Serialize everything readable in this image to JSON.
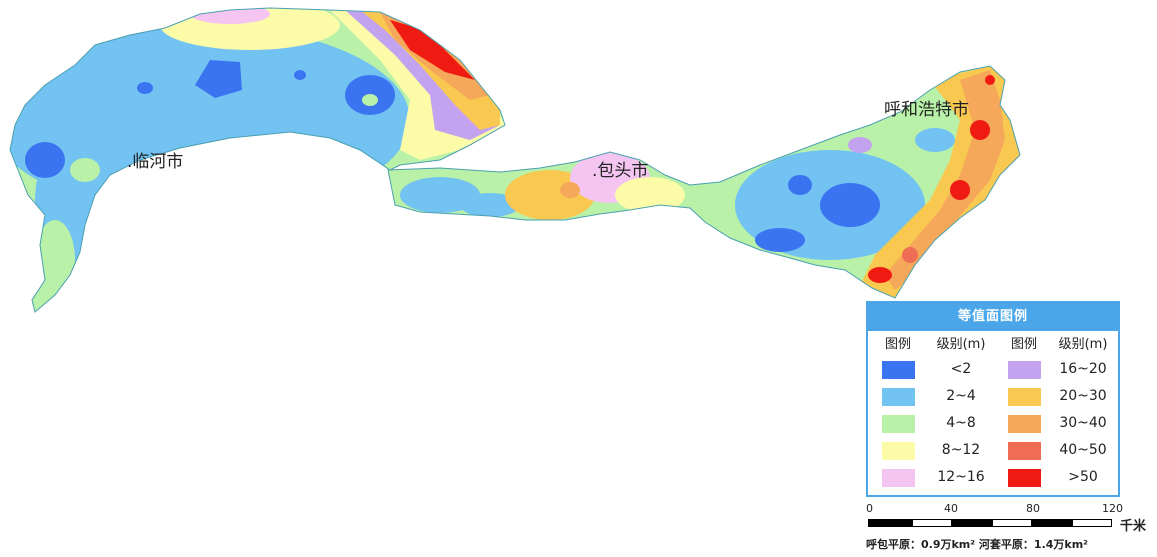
{
  "cities": [
    {
      "id": "linhe",
      "label": ".临河市"
    },
    {
      "id": "baotou",
      "label": ".包头市"
    },
    {
      "id": "huhehaote",
      "label": "呼和浩特市"
    }
  ],
  "legend": {
    "title": "等值面图例",
    "col_header_swatch": "图例",
    "col_header_level": "级别(m)",
    "left_items": [
      {
        "label": "<2",
        "color": "#3b74f0"
      },
      {
        "label": "2~4",
        "color": "#72c2f2"
      },
      {
        "label": "4~8",
        "color": "#b9f1a8"
      },
      {
        "label": "8~12",
        "color": "#fbfba8"
      },
      {
        "label": "12~16",
        "color": "#f5c5f2"
      }
    ],
    "right_items": [
      {
        "label": "16~20",
        "color": "#c3a3ef"
      },
      {
        "label": "20~30",
        "color": "#f8c850"
      },
      {
        "label": "30~40",
        "color": "#f6a85a"
      },
      {
        "label": "40~50",
        "color": "#f06d55"
      },
      {
        "label": ">50",
        "color": "#ef1a12"
      }
    ]
  },
  "scale": {
    "ticks": [
      "0",
      "40",
      "80",
      "120"
    ],
    "unit": "千米",
    "note": "呼包平原：0.9万km²  河套平原：1.4万km²"
  }
}
